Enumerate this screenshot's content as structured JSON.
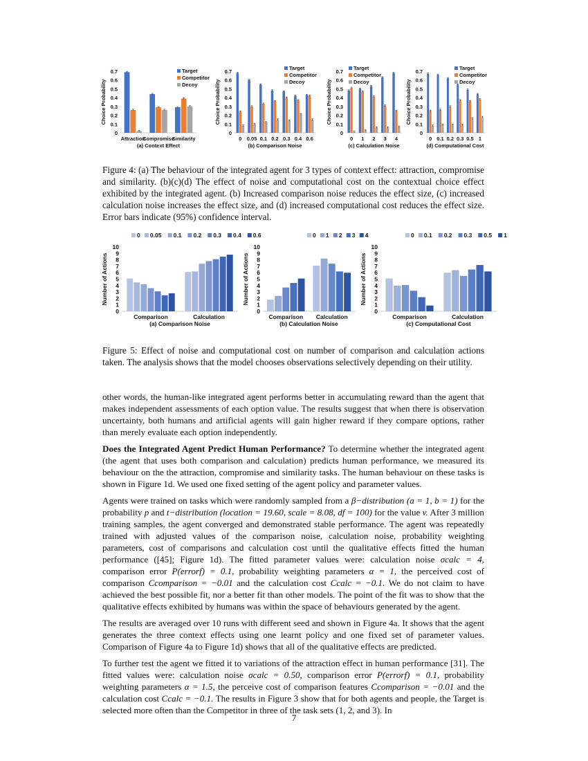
{
  "figure4": {
    "caption": "Figure 4: (a) The behaviour of the integrated agent for 3 types of context effect: attraction, compromise and similarity. (b)(c)(d) The effect of noise and computational cost on the contextual choice effect exhibited by the integrated agent. (b) Increased comparison noise reduces the effect size, (c) increased calculation noise increases the effect size, and (d) increased computational cost reduces the effect size. Error bars indicate (95%) confidence interval."
  },
  "figure5": {
    "caption": "Figure 5: Effect of noise and computational cost on number of comparison and calculation actions taken. The analysis shows that the model chooses observations selectively depending on their utility."
  },
  "chart_data": [
    {
      "type": "bar",
      "panel_label": "(a) Context Effect",
      "categories": [
        "Attraction",
        "Compromise",
        "Similarity"
      ],
      "ylabel": "Choice Probability",
      "yticks": [
        "0",
        "0.1",
        "0.2",
        "0.3",
        "0.4",
        "0.5",
        "0.6",
        "0.7"
      ],
      "ylim": [
        0,
        0.7
      ],
      "legend": "top-right",
      "series": [
        {
          "name": "Target",
          "color": "#4472c4",
          "values": [
            0.69,
            0.44,
            0.29
          ]
        },
        {
          "name": "Competitor",
          "color": "#ed7d31",
          "values": [
            0.26,
            0.29,
            0.39
          ]
        },
        {
          "name": "Decoy",
          "color": "#a5a5a5",
          "values": [
            0.02,
            0.26,
            0.3
          ]
        }
      ]
    },
    {
      "type": "bar",
      "panel_label": "(b) Comparison Noise",
      "categories": [
        "0",
        "0.05",
        "0.1",
        "0.2",
        "0.3",
        "0.4",
        "0.6"
      ],
      "ylabel": "Choice Probability",
      "yticks": [
        "0",
        "0.1",
        "0.2",
        "0.3",
        "0.4",
        "0.5",
        "0.6",
        "0.7"
      ],
      "ylim": [
        0,
        0.7
      ],
      "legend": "top-right",
      "series": [
        {
          "name": "Target",
          "color": "#4472c4",
          "values": [
            0.68,
            0.6,
            0.55,
            0.48,
            0.47,
            0.42,
            0.43
          ]
        },
        {
          "name": "Competitor",
          "color": "#ed7d31",
          "values": [
            0.24,
            0.3,
            0.33,
            0.36,
            0.4,
            0.37,
            0.42
          ]
        },
        {
          "name": "Decoy",
          "color": "#a5a5a5",
          "values": [
            0.08,
            0.1,
            0.12,
            0.15,
            0.14,
            0.21,
            0.15
          ]
        }
      ]
    },
    {
      "type": "bar",
      "panel_label": "(c) Calculation Noise",
      "categories": [
        "0",
        "1",
        "2",
        "3",
        "4"
      ],
      "ylabel": "Choice Probability",
      "yticks": [
        "0",
        "0.1",
        "0.2",
        "0.3",
        "0.4",
        "0.5",
        "0.6",
        "0.7"
      ],
      "ylim": [
        0,
        0.7
      ],
      "legend": "top-left",
      "series": [
        {
          "name": "Target",
          "color": "#4472c4",
          "values": [
            0.48,
            0.5,
            0.53,
            0.63,
            0.68
          ]
        },
        {
          "name": "Competitor",
          "color": "#ed7d31",
          "values": [
            0.51,
            0.47,
            0.41,
            0.31,
            0.25
          ]
        },
        {
          "name": "Decoy",
          "color": "#a5a5a5",
          "values": [
            0.01,
            0.03,
            0.06,
            0.06,
            0.07
          ]
        }
      ]
    },
    {
      "type": "bar",
      "panel_label": "(d) Computational Cost",
      "categories": [
        "0",
        "0.1",
        "0.2",
        "0.3",
        "0.5",
        "1"
      ],
      "ylabel": "Choice Probability",
      "yticks": [
        "0",
        "0.1",
        "0.2",
        "0.3",
        "0.4",
        "0.5",
        "0.6",
        "0.7"
      ],
      "ylim": [
        0,
        0.7
      ],
      "legend": "top-right",
      "series": [
        {
          "name": "Target",
          "color": "#4472c4",
          "values": [
            0.67,
            0.66,
            0.62,
            0.55,
            0.49,
            0.44
          ]
        },
        {
          "name": "Competitor",
          "color": "#ed7d31",
          "values": [
            0.25,
            0.26,
            0.3,
            0.37,
            0.36,
            0.38
          ]
        },
        {
          "name": "Decoy",
          "color": "#a5a5a5",
          "values": [
            0.08,
            0.09,
            0.09,
            0.09,
            0.16,
            0.18
          ]
        }
      ]
    },
    {
      "type": "bar",
      "panel_label": "(a) Comparison Noise",
      "categories": [
        "Comparison",
        "Calculation"
      ],
      "ylabel": "Number of Actions",
      "yticks": [
        "0",
        "1",
        "2",
        "3",
        "4",
        "5",
        "6",
        "7",
        "8",
        "9",
        "10"
      ],
      "ylim": [
        0,
        10
      ],
      "legend": "top",
      "series": [
        {
          "name": "0",
          "color": "#b4c3e3",
          "values": [
            5.1,
            6.1
          ]
        },
        {
          "name": "0.05",
          "color": "#a7b8de",
          "values": [
            4.5,
            6.2
          ]
        },
        {
          "name": "0.1",
          "color": "#93a9d8",
          "values": [
            4.2,
            7.4
          ]
        },
        {
          "name": "0.2",
          "color": "#7b96cf",
          "values": [
            3.6,
            7.8
          ]
        },
        {
          "name": "0.3",
          "color": "#5d7fc5",
          "values": [
            3.1,
            8.1
          ]
        },
        {
          "name": "0.4",
          "color": "#3f66b7",
          "values": [
            2.5,
            8.5
          ]
        },
        {
          "name": "0.6",
          "color": "#2d53a1",
          "values": [
            2.8,
            8.8
          ]
        }
      ]
    },
    {
      "type": "bar",
      "panel_label": "(b) Calculation Noise",
      "categories": [
        "Comparison",
        "Calculation"
      ],
      "ylabel": "Number of Actions",
      "yticks": [
        "0",
        "1",
        "2",
        "3",
        "4",
        "5",
        "6",
        "7",
        "8",
        "9",
        "10"
      ],
      "ylim": [
        0,
        10
      ],
      "legend": "top",
      "series": [
        {
          "name": "0",
          "color": "#b4c3e3",
          "values": [
            1.8,
            7.1
          ]
        },
        {
          "name": "1",
          "color": "#93a9d8",
          "values": [
            2.4,
            8.2
          ]
        },
        {
          "name": "2",
          "color": "#6a89ca",
          "values": [
            3.7,
            7.4
          ]
        },
        {
          "name": "3",
          "color": "#4770bd",
          "values": [
            4.4,
            6.2
          ]
        },
        {
          "name": "4",
          "color": "#2d53a1",
          "values": [
            5.1,
            6.0
          ]
        }
      ]
    },
    {
      "type": "bar",
      "panel_label": "(c) Computational Cost",
      "categories": [
        "Comparison",
        "Calculation"
      ],
      "ylabel": "Number of Actions",
      "yticks": [
        "0",
        "1",
        "2",
        "3",
        "4",
        "5",
        "6",
        "7",
        "8",
        "9",
        "10"
      ],
      "ylim": [
        0,
        10
      ],
      "legend": "top",
      "series": [
        {
          "name": "0",
          "color": "#b4c3e3",
          "values": [
            5.1,
            6.0
          ]
        },
        {
          "name": "0.1",
          "color": "#9db1db",
          "values": [
            4.0,
            6.4
          ]
        },
        {
          "name": "0.2",
          "color": "#7b96cf",
          "values": [
            4.1,
            5.5
          ]
        },
        {
          "name": "0.3",
          "color": "#5d7fc5",
          "values": [
            3.2,
            6.5
          ]
        },
        {
          "name": "0.5",
          "color": "#3f66b7",
          "values": [
            2.2,
            7.2
          ]
        },
        {
          "name": "1",
          "color": "#2d53a1",
          "values": [
            0.9,
            6.2
          ]
        }
      ]
    }
  ],
  "body": {
    "p1": "other words, the human-like integrated agent performs better in accumulating reward than the agent that makes independent assessments of each option value. The results suggest that when there is observation uncertainty, both humans and artificial agents will gain higher reward if they compare options, rather than merely evaluate each option independently.",
    "p2_heading": "Does the Integrated Agent Predict Human Performance?",
    "p2": "To determine whether the integrated agent (the agent that uses both comparison and calculation) predicts human performance, we measured its behaviour on the the attraction, compromise and similarity tasks. The human behaviour on these tasks is shown in Figure 1d. We used one fixed setting of the agent policy and parameter values.",
    "p3_a": "Agents were trained on tasks which were randomly sampled from a",
    "p3_m1": "β−distribution (a = 1, b = 1)",
    "p3_b": "for the probability",
    "p3_m2": "p",
    "p3_c": "and",
    "p3_m3": "t−distribution (location = 19.60, scale = 8.08, df = 100)",
    "p3_d": "for the value",
    "p3_m4": "v.",
    "p3_e": "After 3 million training samples, the agent converged and demonstrated stable performance. The agent was repeatedly trained with adjusted values of the comparison noise, calculation noise, probability weighting parameters, cost of comparisons and calculation cost until the qualitative effects fitted the human performance ([45]; Figure 1d). The fitted parameter values were: calculation noise",
    "p3_m5": "σcalc = 4,",
    "p3_f": "comparison error",
    "p3_m6": "P(errorf) = 0.1,",
    "p3_g": "probability weighting parameters",
    "p3_m7": "α = 1,",
    "p3_h": "the perceived cost of comparison",
    "p3_m8": "Ccomparison = −0.01",
    "p3_i": "and the calculation cost",
    "p3_m9": "Ccalc = −0.1.",
    "p3_j": "We do not claim to have achieved the best possible fit, nor a better fit than other models. The point of the fit was to show that the qualitative effects exhibited by humans was within the space of behaviours generated by the agent.",
    "p4": "The results are averaged over 10 runs with different seed and shown in Figure 4a. It shows that the agent generates the three context effects using one learnt policy and one fixed set of parameter values. Comparison of Figure 4a to Figure 1d) shows that all of the qualitative effects are predicted.",
    "p5_a": "To further test the agent we fitted it to variations of the attraction effect in human performance [31]. The fitted values were: calculation noise",
    "p5_m1": "σcalc = 0.50,",
    "p5_b": "comparison error",
    "p5_m2": "P(errorf) = 0.1,",
    "p5_c": "probability weighting parameters",
    "p5_m3": "α = 1.5,",
    "p5_d": "the perceive cost of comparison features",
    "p5_m4": "Ccomparison = −0.01",
    "p5_e": "and the calculation cost",
    "p5_m5": "Ccalc = −0.1.",
    "p5_f": "The results in Figure 3 show that for both agents and people, the Target is selected more often than the Competitor in three of the task sets (1, 2, and 3). In"
  },
  "page_number": "7"
}
